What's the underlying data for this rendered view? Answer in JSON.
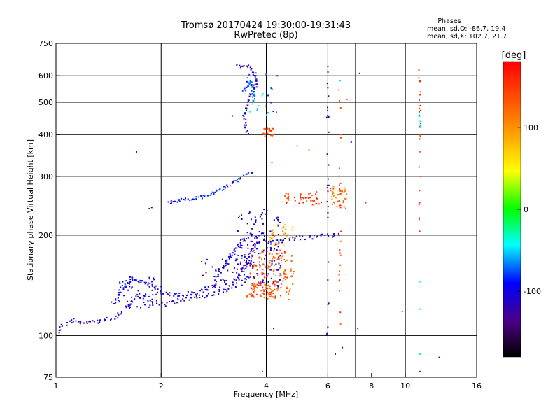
{
  "chart_data": {
    "type": "scatter",
    "title": "Tromsø 20170424 19:30:00-19:31:43",
    "subtitle": "RwPretec (8p)",
    "phase_info": {
      "heading": "Phases",
      "line1": "mean, sd,O: -86.7, 19.4",
      "line2": "mean, sd,X: 102.7, 21.7"
    },
    "xlabel": "Frequency [MHz]",
    "ylabel": "Stationary phase Virtual Height [km]",
    "x_scale": "log",
    "y_scale": "log",
    "xlim": [
      1,
      16
    ],
    "ylim": [
      75,
      750
    ],
    "x_ticks": [
      1,
      2,
      4,
      6,
      8,
      10,
      16
    ],
    "x_tick_labels": [
      "1",
      "2",
      "4",
      "6",
      "8",
      "10",
      "16"
    ],
    "y_ticks": [
      75,
      100,
      200,
      300,
      400,
      500,
      600,
      750
    ],
    "y_tick_labels": [
      "75",
      "100",
      "200",
      "300",
      "400",
      "500",
      "600",
      "750"
    ],
    "x_grid": [
      2,
      4,
      6,
      7.2,
      10
    ],
    "y_grid": [
      100,
      200,
      300,
      400,
      500,
      600
    ],
    "grid": true,
    "colorbar": {
      "label": "[deg]",
      "range": [
        -180,
        180
      ],
      "ticks": [
        100,
        0,
        -100
      ],
      "tick_labels": [
        "100",
        "0",
        "-100"
      ]
    },
    "traces": [
      {
        "kind": "curve",
        "phase": -110,
        "spread": 3,
        "density": 4,
        "pts": [
          [
            1.0,
            100
          ],
          [
            1.05,
            108
          ],
          [
            1.12,
            112
          ],
          [
            1.2,
            108
          ],
          [
            1.3,
            110
          ],
          [
            1.45,
            112
          ],
          [
            1.55,
            118
          ],
          [
            1.65,
            128
          ],
          [
            1.75,
            132
          ],
          [
            1.9,
            126
          ],
          [
            2.05,
            124
          ],
          [
            2.3,
            128
          ],
          [
            2.5,
            130
          ],
          [
            2.8,
            132
          ],
          [
            3.1,
            138
          ],
          [
            3.3,
            150
          ],
          [
            3.5,
            165
          ],
          [
            3.7,
            185
          ],
          [
            3.9,
            192
          ],
          [
            4.2,
            190
          ],
          [
            4.5,
            192
          ],
          [
            5.0,
            196
          ],
          [
            5.6,
            198
          ],
          [
            6.2,
            200
          ],
          [
            6.6,
            202
          ]
        ]
      },
      {
        "kind": "curve",
        "phase": -100,
        "spread": 3,
        "density": 3,
        "pts": [
          [
            1.45,
            125
          ],
          [
            1.55,
            138
          ],
          [
            1.65,
            150
          ],
          [
            1.75,
            145
          ],
          [
            1.9,
            140
          ],
          [
            2.0,
            135
          ],
          [
            2.2,
            132
          ],
          [
            2.5,
            134
          ],
          [
            2.8,
            140
          ],
          [
            3.0,
            160
          ],
          [
            3.2,
            175
          ],
          [
            3.4,
            190
          ],
          [
            3.6,
            200
          ],
          [
            3.8,
            196
          ]
        ]
      },
      {
        "kind": "curve",
        "phase": -90,
        "spread": 2,
        "density": 3,
        "pts": [
          [
            2.1,
            250
          ],
          [
            2.3,
            255
          ],
          [
            2.5,
            258
          ],
          [
            2.7,
            262
          ],
          [
            2.9,
            272
          ],
          [
            3.1,
            280
          ],
          [
            3.3,
            292
          ],
          [
            3.5,
            305
          ],
          [
            3.7,
            310
          ]
        ]
      },
      {
        "kind": "curve",
        "phase": -115,
        "spread": 2,
        "density": 3,
        "pts": [
          [
            3.3,
            640
          ],
          [
            3.5,
            645
          ],
          [
            3.6,
            640
          ],
          [
            3.7,
            610
          ],
          [
            3.75,
            560
          ],
          [
            3.6,
            520
          ],
          [
            3.5,
            480
          ],
          [
            3.45,
            450
          ],
          [
            3.5,
            420
          ],
          [
            3.55,
            400
          ]
        ]
      },
      {
        "kind": "curve",
        "phase": -70,
        "spread": 2,
        "density": 2,
        "pts": [
          [
            3.45,
            540
          ],
          [
            3.55,
            560
          ],
          [
            3.6,
            580
          ],
          [
            3.65,
            560
          ],
          [
            3.7,
            500
          ]
        ]
      },
      {
        "kind": "cloud",
        "phase": 130,
        "f": [
          3.6,
          4.8
        ],
        "h": [
          128,
          180
        ],
        "n": 150
      },
      {
        "kind": "cloud",
        "phase": 140,
        "f": [
          3.5,
          4.2
        ],
        "h": [
          130,
          145
        ],
        "n": 50
      },
      {
        "kind": "cloud",
        "phase": -110,
        "f": [
          3.3,
          4.4
        ],
        "h": [
          140,
          240
        ],
        "n": 140
      },
      {
        "kind": "cloud",
        "phase": 90,
        "f": [
          4.0,
          4.8
        ],
        "h": [
          185,
          215
        ],
        "n": 35
      },
      {
        "kind": "cloud",
        "phase": 150,
        "f": [
          4.5,
          5.8
        ],
        "h": [
          245,
          270
        ],
        "n": 45
      },
      {
        "kind": "cloud",
        "phase": 115,
        "f": [
          6.1,
          6.8
        ],
        "h": [
          240,
          280
        ],
        "n": 40
      },
      {
        "kind": "cloud",
        "phase": 130,
        "f": [
          3.9,
          4.2
        ],
        "h": [
          395,
          420
        ],
        "n": 20
      },
      {
        "kind": "cloud",
        "phase": -60,
        "f": [
          3.5,
          4.3
        ],
        "h": [
          450,
          620
        ],
        "n": 25
      },
      {
        "kind": "cloud",
        "phase": -120,
        "f": [
          2.6,
          3.5
        ],
        "h": [
          138,
          170
        ],
        "n": 45
      },
      {
        "kind": "cloud",
        "phase": -110,
        "f": [
          1.5,
          2.0
        ],
        "h": [
          120,
          150
        ],
        "n": 55
      },
      {
        "kind": "vline",
        "phase": 150,
        "f": 11.0,
        "h": [
          200,
          640
        ],
        "n": 28
      },
      {
        "kind": "vline",
        "phase": -40,
        "f": 11.0,
        "h": [
          420,
          470
        ],
        "n": 7
      },
      {
        "kind": "vline",
        "phase": -130,
        "f": 6.0,
        "h": [
          95,
          640
        ],
        "n": 30
      },
      {
        "kind": "vline",
        "phase": 140,
        "f": 6.5,
        "h": [
          105,
          560
        ],
        "n": 25
      }
    ],
    "points": [
      [
        1.7,
        355,
        -120
      ],
      [
        1.85,
        240,
        -120
      ],
      [
        1.88,
        242,
        -110
      ],
      [
        3.2,
        455,
        -130
      ],
      [
        4.2,
        105,
        -140
      ],
      [
        6.0,
        640,
        -130
      ],
      [
        7.4,
        610,
        -90
      ],
      [
        9.8,
        118,
        140
      ],
      [
        11.0,
        78,
        -130
      ],
      [
        11.0,
        88,
        -20
      ],
      [
        12.5,
        86,
        -120
      ],
      [
        11.0,
        120,
        -20
      ],
      [
        11.0,
        145,
        -40
      ],
      [
        7.3,
        105,
        150
      ],
      [
        6.6,
        92,
        -100
      ],
      [
        6.3,
        88,
        -130
      ],
      [
        6.8,
        510,
        150
      ],
      [
        7.0,
        380,
        -100
      ],
      [
        7.7,
        250,
        150
      ],
      [
        3.9,
        78,
        150
      ],
      [
        4.9,
        370,
        120
      ],
      [
        5.3,
        360,
        100
      ],
      [
        4.15,
        330,
        150
      ],
      [
        4.3,
        600,
        -130
      ],
      [
        6.5,
        580,
        -50
      ]
    ]
  }
}
